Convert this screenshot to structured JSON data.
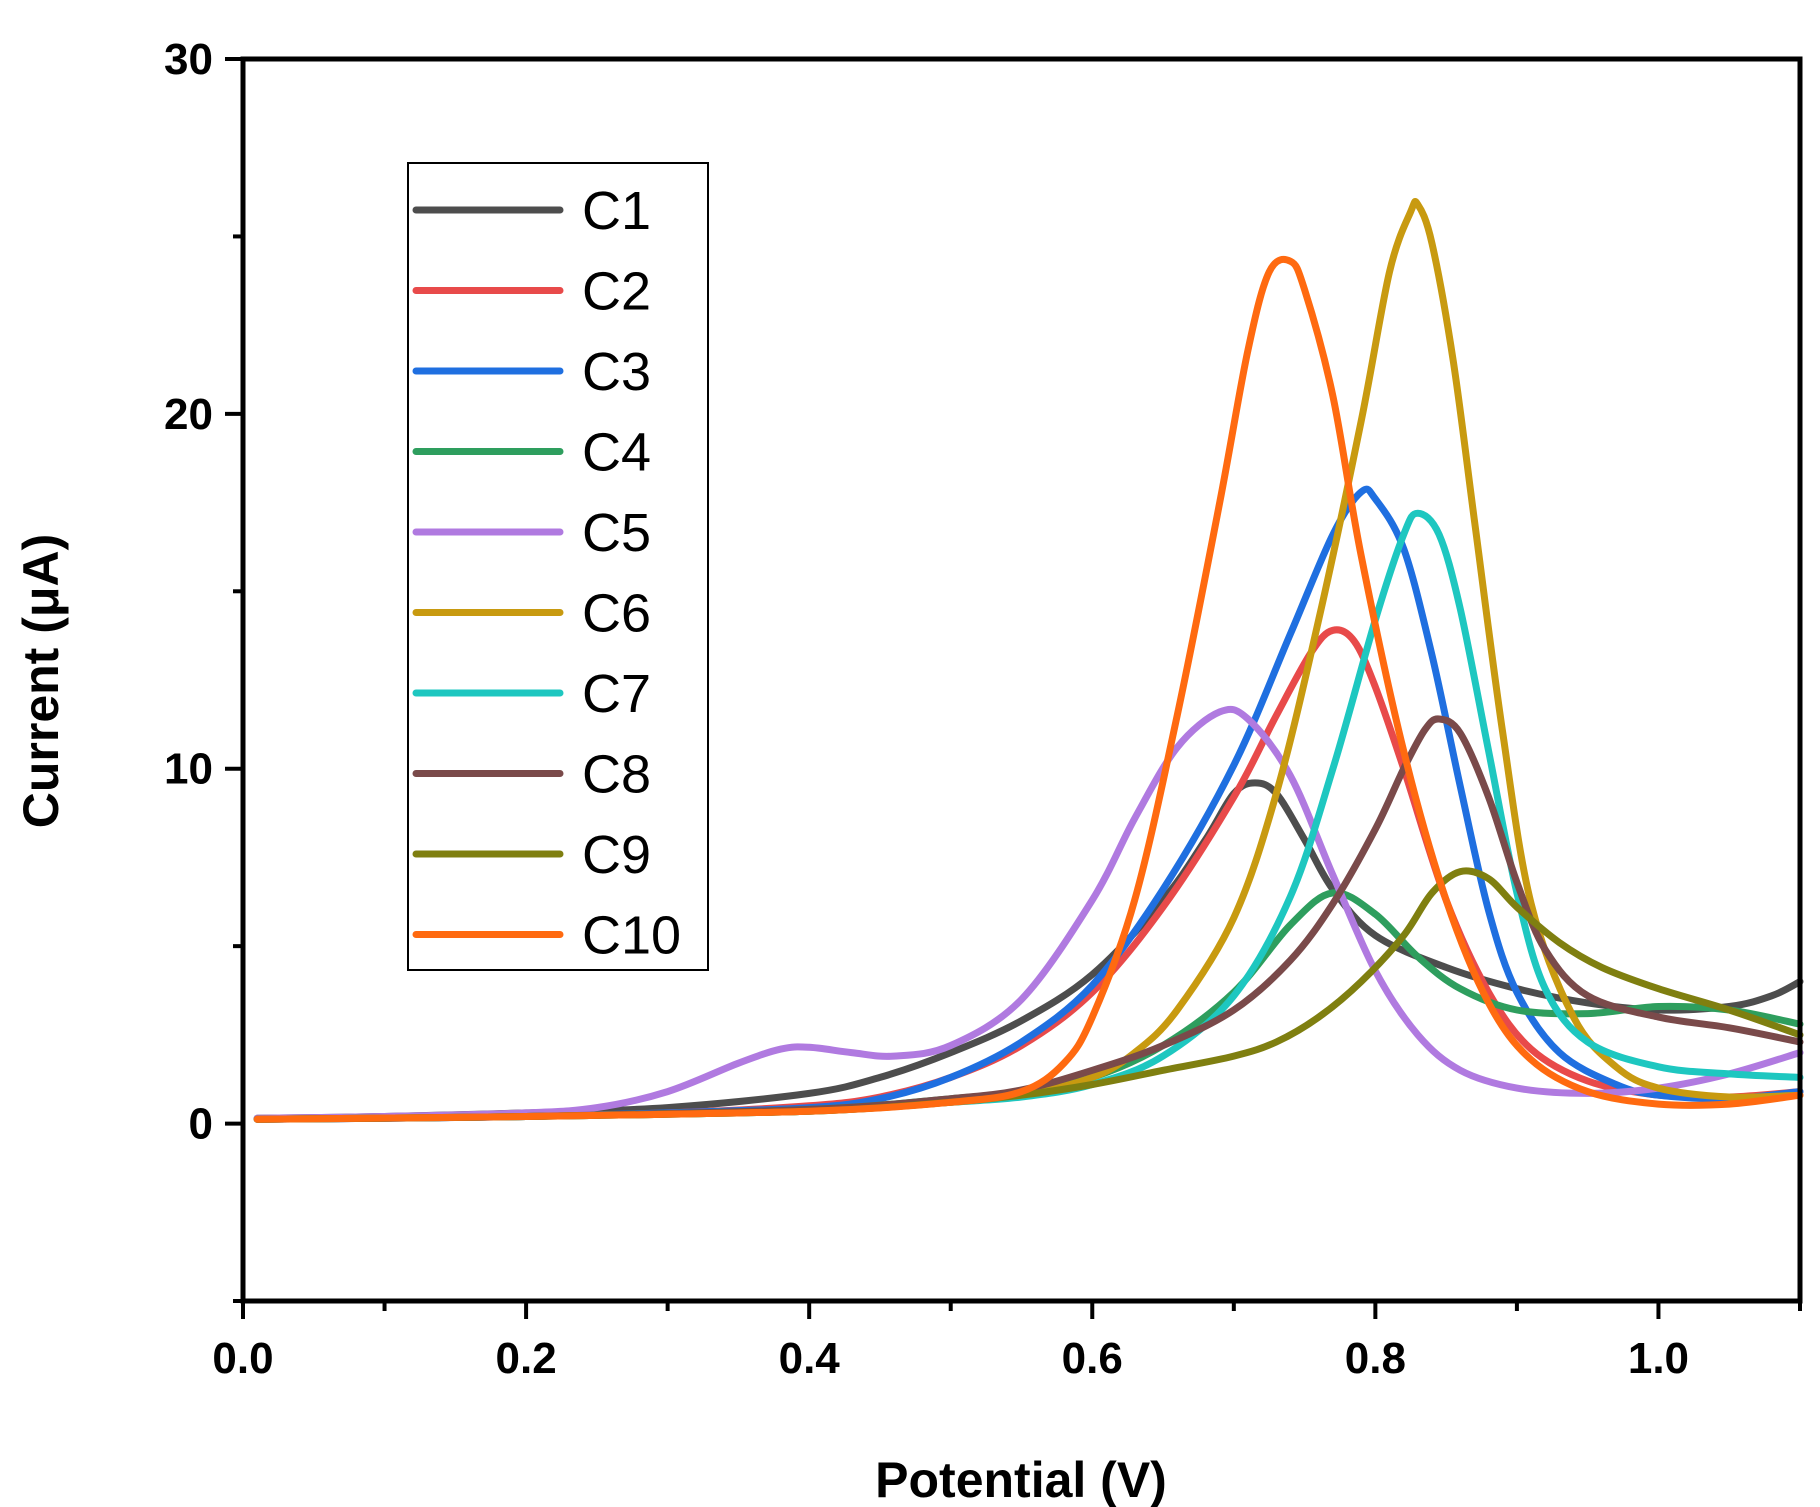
{
  "chart_data": {
    "type": "line",
    "xlabel": "Potential (V)",
    "ylabel": "Current (μA)",
    "xlim": [
      0.0,
      1.1
    ],
    "ylim": [
      -5,
      30
    ],
    "xticks": [
      0.0,
      0.2,
      0.4,
      0.6,
      0.8,
      1.0
    ],
    "xtick_labels": [
      "0.0",
      "0.2",
      "0.4",
      "0.6",
      "0.8",
      "1.0"
    ],
    "yticks": [
      0,
      10,
      20,
      30
    ],
    "ytick_labels": [
      "0",
      "10",
      "20",
      "30"
    ],
    "grid": false,
    "legend_position": "top-left",
    "series": [
      {
        "name": "C1",
        "color": "#4d4d4d",
        "points": [
          [
            0.01,
            0.15
          ],
          [
            0.1,
            0.2
          ],
          [
            0.2,
            0.3
          ],
          [
            0.3,
            0.45
          ],
          [
            0.4,
            0.85
          ],
          [
            0.45,
            1.3
          ],
          [
            0.5,
            2.0
          ],
          [
            0.55,
            2.9
          ],
          [
            0.6,
            4.2
          ],
          [
            0.65,
            6.3
          ],
          [
            0.68,
            8.0
          ],
          [
            0.7,
            9.3
          ],
          [
            0.715,
            9.6
          ],
          [
            0.73,
            9.3
          ],
          [
            0.75,
            8.0
          ],
          [
            0.77,
            6.6
          ],
          [
            0.8,
            5.3
          ],
          [
            0.85,
            4.4
          ],
          [
            0.9,
            3.8
          ],
          [
            0.95,
            3.4
          ],
          [
            1.0,
            3.2
          ],
          [
            1.05,
            3.3
          ],
          [
            1.08,
            3.6
          ],
          [
            1.1,
            4.0
          ]
        ]
      },
      {
        "name": "C2",
        "color": "#e84a4a",
        "points": [
          [
            0.01,
            0.12
          ],
          [
            0.1,
            0.15
          ],
          [
            0.2,
            0.2
          ],
          [
            0.3,
            0.3
          ],
          [
            0.4,
            0.5
          ],
          [
            0.45,
            0.75
          ],
          [
            0.5,
            1.3
          ],
          [
            0.55,
            2.2
          ],
          [
            0.6,
            3.7
          ],
          [
            0.65,
            6.1
          ],
          [
            0.7,
            9.2
          ],
          [
            0.73,
            11.5
          ],
          [
            0.755,
            13.3
          ],
          [
            0.77,
            13.9
          ],
          [
            0.785,
            13.6
          ],
          [
            0.8,
            12.3
          ],
          [
            0.82,
            10.0
          ],
          [
            0.85,
            6.3
          ],
          [
            0.88,
            3.7
          ],
          [
            0.91,
            2.1
          ],
          [
            0.95,
            1.2
          ],
          [
            1.0,
            0.8
          ],
          [
            1.05,
            0.75
          ],
          [
            1.1,
            0.9
          ]
        ]
      },
      {
        "name": "C3",
        "color": "#1f6fe0",
        "points": [
          [
            0.01,
            0.12
          ],
          [
            0.1,
            0.15
          ],
          [
            0.2,
            0.2
          ],
          [
            0.3,
            0.3
          ],
          [
            0.4,
            0.45
          ],
          [
            0.45,
            0.7
          ],
          [
            0.5,
            1.3
          ],
          [
            0.55,
            2.3
          ],
          [
            0.6,
            3.9
          ],
          [
            0.65,
            6.6
          ],
          [
            0.7,
            10.1
          ],
          [
            0.74,
            13.8
          ],
          [
            0.77,
            16.6
          ],
          [
            0.79,
            17.8
          ],
          [
            0.8,
            17.6
          ],
          [
            0.82,
            16.2
          ],
          [
            0.84,
            13.2
          ],
          [
            0.86,
            9.5
          ],
          [
            0.88,
            6.0
          ],
          [
            0.9,
            3.7
          ],
          [
            0.93,
            2.0
          ],
          [
            0.97,
            1.1
          ],
          [
            1.0,
            0.8
          ],
          [
            1.05,
            0.7
          ],
          [
            1.1,
            0.9
          ]
        ]
      },
      {
        "name": "C4",
        "color": "#2e9e5e",
        "points": [
          [
            0.01,
            0.12
          ],
          [
            0.2,
            0.2
          ],
          [
            0.4,
            0.4
          ],
          [
            0.5,
            0.7
          ],
          [
            0.55,
            0.9
          ],
          [
            0.6,
            1.3
          ],
          [
            0.65,
            2.2
          ],
          [
            0.7,
            3.7
          ],
          [
            0.74,
            5.6
          ],
          [
            0.77,
            6.5
          ],
          [
            0.8,
            5.9
          ],
          [
            0.83,
            4.7
          ],
          [
            0.86,
            3.8
          ],
          [
            0.9,
            3.2
          ],
          [
            0.95,
            3.1
          ],
          [
            1.0,
            3.3
          ],
          [
            1.05,
            3.2
          ],
          [
            1.1,
            2.8
          ]
        ]
      },
      {
        "name": "C5",
        "color": "#b07ae0",
        "points": [
          [
            0.01,
            0.15
          ],
          [
            0.1,
            0.2
          ],
          [
            0.2,
            0.3
          ],
          [
            0.25,
            0.45
          ],
          [
            0.3,
            0.9
          ],
          [
            0.35,
            1.7
          ],
          [
            0.38,
            2.1
          ],
          [
            0.4,
            2.15
          ],
          [
            0.43,
            2.0
          ],
          [
            0.46,
            1.9
          ],
          [
            0.5,
            2.2
          ],
          [
            0.55,
            3.5
          ],
          [
            0.6,
            6.3
          ],
          [
            0.63,
            8.6
          ],
          [
            0.66,
            10.6
          ],
          [
            0.69,
            11.6
          ],
          [
            0.71,
            11.4
          ],
          [
            0.74,
            9.8
          ],
          [
            0.77,
            7.0
          ],
          [
            0.8,
            4.3
          ],
          [
            0.83,
            2.5
          ],
          [
            0.86,
            1.5
          ],
          [
            0.9,
            1.0
          ],
          [
            0.95,
            0.85
          ],
          [
            1.0,
            1.0
          ],
          [
            1.05,
            1.4
          ],
          [
            1.1,
            2.0
          ]
        ]
      },
      {
        "name": "C6",
        "color": "#c89a10",
        "points": [
          [
            0.01,
            0.12
          ],
          [
            0.2,
            0.2
          ],
          [
            0.4,
            0.35
          ],
          [
            0.5,
            0.6
          ],
          [
            0.55,
            0.8
          ],
          [
            0.6,
            1.3
          ],
          [
            0.63,
            2.0
          ],
          [
            0.66,
            3.2
          ],
          [
            0.7,
            5.8
          ],
          [
            0.73,
            9.3
          ],
          [
            0.76,
            14.2
          ],
          [
            0.79,
            19.8
          ],
          [
            0.81,
            24.0
          ],
          [
            0.825,
            25.7
          ],
          [
            0.83,
            25.9
          ],
          [
            0.84,
            24.8
          ],
          [
            0.855,
            21.5
          ],
          [
            0.87,
            17.0
          ],
          [
            0.89,
            11.0
          ],
          [
            0.91,
            6.2
          ],
          [
            0.94,
            3.0
          ],
          [
            0.97,
            1.6
          ],
          [
            1.0,
            1.0
          ],
          [
            1.05,
            0.75
          ],
          [
            1.1,
            0.8
          ]
        ]
      },
      {
        "name": "C7",
        "color": "#1ec7c0",
        "points": [
          [
            0.01,
            0.12
          ],
          [
            0.2,
            0.2
          ],
          [
            0.4,
            0.35
          ],
          [
            0.5,
            0.6
          ],
          [
            0.55,
            0.75
          ],
          [
            0.6,
            1.1
          ],
          [
            0.65,
            1.9
          ],
          [
            0.7,
            3.6
          ],
          [
            0.74,
            6.4
          ],
          [
            0.77,
            10.0
          ],
          [
            0.8,
            14.2
          ],
          [
            0.82,
            16.6
          ],
          [
            0.83,
            17.2
          ],
          [
            0.845,
            16.6
          ],
          [
            0.86,
            14.5
          ],
          [
            0.88,
            10.5
          ],
          [
            0.9,
            6.5
          ],
          [
            0.92,
            3.8
          ],
          [
            0.95,
            2.3
          ],
          [
            1.0,
            1.6
          ],
          [
            1.05,
            1.4
          ],
          [
            1.1,
            1.3
          ]
        ]
      },
      {
        "name": "C8",
        "color": "#7a4a4a",
        "points": [
          [
            0.01,
            0.12
          ],
          [
            0.2,
            0.2
          ],
          [
            0.4,
            0.4
          ],
          [
            0.5,
            0.7
          ],
          [
            0.55,
            0.95
          ],
          [
            0.6,
            1.5
          ],
          [
            0.65,
            2.2
          ],
          [
            0.7,
            3.2
          ],
          [
            0.74,
            4.6
          ],
          [
            0.77,
            6.2
          ],
          [
            0.8,
            8.3
          ],
          [
            0.82,
            10.0
          ],
          [
            0.835,
            11.1
          ],
          [
            0.845,
            11.4
          ],
          [
            0.86,
            11.0
          ],
          [
            0.88,
            9.2
          ],
          [
            0.9,
            6.8
          ],
          [
            0.92,
            4.9
          ],
          [
            0.95,
            3.6
          ],
          [
            1.0,
            3.0
          ],
          [
            1.05,
            2.7
          ],
          [
            1.1,
            2.3
          ]
        ]
      },
      {
        "name": "C9",
        "color": "#7f7f10",
        "points": [
          [
            0.01,
            0.12
          ],
          [
            0.2,
            0.2
          ],
          [
            0.4,
            0.35
          ],
          [
            0.5,
            0.6
          ],
          [
            0.55,
            0.8
          ],
          [
            0.6,
            1.1
          ],
          [
            0.65,
            1.5
          ],
          [
            0.7,
            1.9
          ],
          [
            0.73,
            2.3
          ],
          [
            0.76,
            3.0
          ],
          [
            0.79,
            4.0
          ],
          [
            0.82,
            5.3
          ],
          [
            0.84,
            6.5
          ],
          [
            0.86,
            7.1
          ],
          [
            0.88,
            6.9
          ],
          [
            0.9,
            6.1
          ],
          [
            0.93,
            5.1
          ],
          [
            0.96,
            4.4
          ],
          [
            1.0,
            3.8
          ],
          [
            1.05,
            3.2
          ],
          [
            1.1,
            2.5
          ]
        ]
      },
      {
        "name": "C10",
        "color": "#ff6a10",
        "points": [
          [
            0.01,
            0.12
          ],
          [
            0.2,
            0.2
          ],
          [
            0.4,
            0.35
          ],
          [
            0.5,
            0.6
          ],
          [
            0.55,
            0.9
          ],
          [
            0.58,
            1.7
          ],
          [
            0.6,
            3.0
          ],
          [
            0.63,
            6.3
          ],
          [
            0.66,
            11.5
          ],
          [
            0.69,
            17.5
          ],
          [
            0.71,
            21.8
          ],
          [
            0.725,
            24.0
          ],
          [
            0.74,
            24.3
          ],
          [
            0.75,
            23.5
          ],
          [
            0.77,
            20.5
          ],
          [
            0.79,
            16.0
          ],
          [
            0.82,
            10.5
          ],
          [
            0.85,
            6.3
          ],
          [
            0.88,
            3.4
          ],
          [
            0.91,
            1.8
          ],
          [
            0.95,
            0.9
          ],
          [
            1.0,
            0.55
          ],
          [
            1.05,
            0.55
          ],
          [
            1.1,
            0.8
          ]
        ]
      }
    ]
  }
}
